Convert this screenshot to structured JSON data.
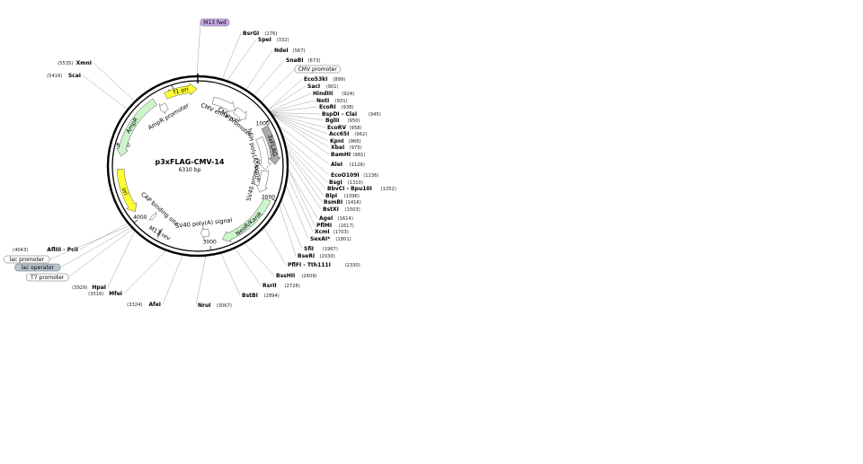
{
  "map": {
    "name": "p3xFLAG-CMV-14",
    "size_label": "6310 bp",
    "length": 6310
  },
  "ticks": [
    {
      "label": "1000",
      "pos": 1000
    },
    {
      "label": "2000",
      "pos": 2000
    },
    {
      "label": "3000",
      "pos": 3000
    },
    {
      "label": "4000",
      "pos": 4000
    },
    {
      "label": "5000",
      "pos": 5000
    },
    {
      "label": "6000",
      "pos": 6000
    }
  ],
  "features": [
    {
      "name": "f1 ori",
      "start": 5880,
      "end": 6300,
      "dir": 1,
      "color": "#ffff33",
      "ring": "outer"
    },
    {
      "name": "CMV enhancer",
      "start": 230,
      "end": 590,
      "dir": 1,
      "color": "#ffffff",
      "ring": "inner"
    },
    {
      "name": "CMV promoter",
      "start": 595,
      "end": 800,
      "dir": 1,
      "color": "#ffffff",
      "ring": "inner"
    },
    {
      "name": "3xFLAG",
      "start": 1050,
      "end": 1560,
      "dir": 1,
      "color": "#aaaaaa",
      "ring": "outer"
    },
    {
      "name": "hGH poly(A) signal",
      "start": 1150,
      "end": 1630,
      "dir": 1,
      "color": "#ffffff",
      "ring": "inner"
    },
    {
      "name": "SV40 promoter",
      "start": 1650,
      "end": 1980,
      "dir": 1,
      "color": "#ffffff",
      "ring": "inner"
    },
    {
      "name": "NeoR/KanR",
      "start": 2030,
      "end": 2830,
      "dir": 1,
      "color": "#ccf5cc",
      "ring": "outer"
    },
    {
      "name": "SV40 poly(A) signal",
      "start": 2990,
      "end": 3110,
      "dir": 1,
      "color": "#ffffff",
      "ring": "inner"
    },
    {
      "name": "M13 rev",
      "start": 3660,
      "end": 3685,
      "dir": -1,
      "color": "#a070c8",
      "ring": "outer"
    },
    {
      "name": "CAP binding site",
      "start": 3860,
      "end": 3900,
      "dir": 1,
      "color": "#ffffff",
      "ring": "inner"
    },
    {
      "name": "ori",
      "start": 4100,
      "end": 4690,
      "dir": -1,
      "color": "#ffff33",
      "ring": "outer"
    },
    {
      "name": "AmpR",
      "start": 4860,
      "end": 5720,
      "dir": -1,
      "color": "#ccf5cc",
      "ring": "outer"
    },
    {
      "name": "AmpR promoter",
      "start": 5720,
      "end": 5830,
      "dir": -1,
      "color": "#ffffff",
      "ring": "inner"
    }
  ],
  "primer_top": {
    "name": "M13 fwd",
    "pos": 6300
  },
  "sites": [
    {
      "name": "M13 fwd",
      "pos": "",
      "box": "purple"
    },
    {
      "name": "BsrGI",
      "pos": "(276)"
    },
    {
      "name": "SpeI",
      "pos": "(332)"
    },
    {
      "name": "NdeI",
      "pos": "(567)"
    },
    {
      "name": "SnaBI",
      "pos": "(673)"
    },
    {
      "name": "CMV promoter",
      "pos": "",
      "box": "plain"
    },
    {
      "name": "Eco53kI",
      "pos": "(899)"
    },
    {
      "name": "SacI",
      "pos": "(901)"
    },
    {
      "name": "HindIII",
      "pos": "(924)"
    },
    {
      "name": "NotI",
      "pos": "(931)"
    },
    {
      "name": "EcoRI",
      "pos": "(938)"
    },
    {
      "name": "BspDI - ClaI",
      "pos": "(945)"
    },
    {
      "name": "BglII",
      "pos": "(950)"
    },
    {
      "name": "EcoRV",
      "pos": "(958)"
    },
    {
      "name": "Acc65I",
      "pos": "(962)"
    },
    {
      "name": "KpnI",
      "pos": "(966)"
    },
    {
      "name": "XbaI",
      "pos": "(975)"
    },
    {
      "name": "BamHI",
      "pos": "(981)"
    },
    {
      "name": "AleI",
      "pos": "(1126)"
    },
    {
      "name": "EcoO109I",
      "pos": "(1236)"
    },
    {
      "name": "BsgI",
      "pos": "(1310)"
    },
    {
      "name": "BbvCI - Bpu10I",
      "pos": "(1352)"
    },
    {
      "name": "BlpI",
      "pos": "(1396)"
    },
    {
      "name": "BsmBI",
      "pos": "(1416)"
    },
    {
      "name": "BstXI",
      "pos": "(1503)"
    },
    {
      "name": "AgeI",
      "pos": "(1614)"
    },
    {
      "name": "PflMI",
      "pos": "(1617)"
    },
    {
      "name": "XcmI",
      "pos": "(1703)"
    },
    {
      "name": "SexAI*",
      "pos": "(1801)",
      "gray": true
    },
    {
      "name": "SfiI",
      "pos": "(1967)"
    },
    {
      "name": "BseRI",
      "pos": "(2030)"
    },
    {
      "name": "PflFI - Tth111I",
      "pos": "(2330)"
    },
    {
      "name": "BssHII",
      "pos": "(2609)"
    },
    {
      "name": "RsrII",
      "pos": "(2728)"
    },
    {
      "name": "BstBI",
      "pos": "(2894)"
    },
    {
      "name": "NruI",
      "pos": "(3067)"
    },
    {
      "name": "AfeI",
      "pos": "(3324)"
    },
    {
      "name": "MfeI",
      "pos": "(3516)"
    },
    {
      "name": "HpaI",
      "pos": "(3929)"
    },
    {
      "name": "T7 promoter",
      "pos": "",
      "box": "plain"
    },
    {
      "name": "lac operator",
      "pos": "",
      "box": "gray"
    },
    {
      "name": "lac promoter",
      "pos": "",
      "box": "plain"
    },
    {
      "name": "AflIII - PciI",
      "pos": "(4043)"
    },
    {
      "name": "ScaI",
      "pos": "(5416)"
    },
    {
      "name": "XmnI",
      "pos": "(5535)"
    }
  ]
}
